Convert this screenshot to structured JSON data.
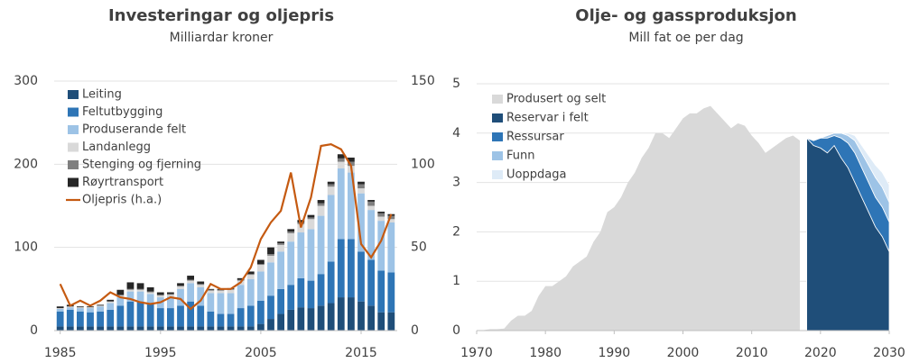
{
  "chart_data": [
    {
      "type": "bar",
      "title": "Investeringar og oljepris",
      "subtitle": "Milliardar kroner",
      "x": [
        1985,
        1986,
        1987,
        1988,
        1989,
        1990,
        1991,
        1992,
        1993,
        1994,
        1995,
        1996,
        1997,
        1998,
        1999,
        2000,
        2001,
        2002,
        2003,
        2004,
        2005,
        2006,
        2007,
        2008,
        2009,
        2010,
        2011,
        2012,
        2013,
        2014,
        2015,
        2016,
        2017,
        2018
      ],
      "xlim": [
        1984.4,
        2018.6
      ],
      "xticks": [
        1985,
        1995,
        2005,
        2015
      ],
      "ylim": [
        0,
        300
      ],
      "yticks": [
        0,
        100,
        200,
        300
      ],
      "y2lim": [
        0,
        150
      ],
      "y2ticks": [
        0,
        50,
        100,
        150
      ],
      "grid": true,
      "legend": "upper left",
      "series": [
        {
          "name": "Leiting",
          "color": "#1f4e79",
          "values": [
            5,
            5,
            5,
            5,
            5,
            5,
            5,
            5,
            5,
            5,
            5,
            5,
            5,
            5,
            5,
            5,
            5,
            5,
            5,
            5,
            8,
            14,
            20,
            25,
            28,
            27,
            30,
            33,
            40,
            40,
            35,
            30,
            22,
            22
          ]
        },
        {
          "name": "Feltutbygging",
          "color": "#2e75b6",
          "values": [
            18,
            20,
            18,
            17,
            18,
            20,
            25,
            30,
            30,
            27,
            22,
            22,
            25,
            30,
            25,
            18,
            15,
            15,
            22,
            25,
            28,
            28,
            30,
            30,
            35,
            33,
            38,
            50,
            70,
            70,
            60,
            55,
            50,
            48
          ]
        },
        {
          "name": "Produserande felt",
          "color": "#9dc3e6",
          "values": [
            3,
            3,
            4,
            5,
            6,
            8,
            10,
            12,
            12,
            12,
            13,
            14,
            20,
            22,
            22,
            22,
            25,
            25,
            28,
            32,
            35,
            40,
            45,
            52,
            55,
            62,
            70,
            80,
            85,
            80,
            70,
            60,
            60,
            60
          ]
        },
        {
          "name": "Landanlegg",
          "color": "#d9d9d9",
          "values": [
            1,
            1,
            1,
            1,
            1,
            2,
            2,
            2,
            2,
            2,
            2,
            2,
            3,
            3,
            3,
            3,
            3,
            4,
            5,
            5,
            8,
            8,
            8,
            10,
            10,
            12,
            12,
            10,
            8,
            8,
            6,
            5,
            5,
            4
          ]
        },
        {
          "name": "Stenging og fjerning",
          "color": "#7f7f7f",
          "values": [
            0,
            0,
            0,
            0,
            0,
            0,
            1,
            1,
            1,
            1,
            1,
            1,
            1,
            1,
            1,
            1,
            1,
            1,
            1,
            1,
            1,
            2,
            2,
            2,
            2,
            2,
            3,
            3,
            4,
            5,
            5,
            5,
            4,
            4
          ]
        },
        {
          "name": "Røyrtransport",
          "color": "#262626",
          "values": [
            2,
            2,
            1,
            1,
            1,
            2,
            6,
            8,
            7,
            5,
            3,
            2,
            3,
            5,
            3,
            1,
            1,
            1,
            2,
            3,
            5,
            8,
            2,
            3,
            3,
            3,
            4,
            3,
            5,
            5,
            3,
            2,
            2,
            2
          ]
        },
        {
          "name": "Oljepris (h.a.)",
          "color": "#c55a11",
          "axis": "y2",
          "values": [
            28,
            15,
            18,
            15,
            18,
            23,
            20,
            19,
            17,
            16,
            17,
            20,
            19,
            13,
            18,
            28,
            25,
            25,
            29,
            38,
            55,
            65,
            72,
            95,
            62,
            80,
            111,
            112,
            109,
            99,
            52,
            44,
            54,
            70
          ]
        }
      ]
    },
    {
      "type": "area",
      "title": "Olje- og gassproduksjon",
      "subtitle": "Mill fat oe per dag",
      "x": [
        1970,
        1971,
        1972,
        1973,
        1974,
        1975,
        1976,
        1977,
        1978,
        1979,
        1980,
        1981,
        1982,
        1983,
        1984,
        1985,
        1986,
        1987,
        1988,
        1989,
        1990,
        1991,
        1992,
        1993,
        1994,
        1995,
        1996,
        1997,
        1998,
        1999,
        2000,
        2001,
        2002,
        2003,
        2004,
        2005,
        2006,
        2007,
        2008,
        2009,
        2010,
        2011,
        2012,
        2013,
        2014,
        2015,
        2016,
        2017,
        2018,
        2019,
        2020,
        2021,
        2022,
        2023,
        2024,
        2025,
        2026,
        2027,
        2028,
        2029,
        2030
      ],
      "xlim": [
        1970,
        2030
      ],
      "xticks": [
        1970,
        1980,
        1990,
        2000,
        2010,
        2020,
        2030
      ],
      "ylim": [
        0,
        5
      ],
      "yticks": [
        0,
        1,
        2,
        3,
        4,
        5
      ],
      "grid": true,
      "legend": "upper left",
      "series": [
        {
          "name": "Produsert og selt",
          "color": "#d9d9d9",
          "values": [
            null,
            0.01,
            0.03,
            0.03,
            0.04,
            0.2,
            0.3,
            0.3,
            0.4,
            0.7,
            0.9,
            0.9,
            1.0,
            1.1,
            1.3,
            1.4,
            1.5,
            1.8,
            2.0,
            2.4,
            2.5,
            2.7,
            3.0,
            3.2,
            3.5,
            3.7,
            4.0,
            4.0,
            3.9,
            4.1,
            4.3,
            4.4,
            4.4,
            4.5,
            4.55,
            4.4,
            4.25,
            4.1,
            4.2,
            4.15,
            3.95,
            3.8,
            3.6,
            3.7,
            3.8,
            3.9,
            3.95,
            3.85,
            null,
            null,
            null,
            null,
            null,
            null,
            null,
            null,
            null,
            null,
            null,
            null,
            null
          ]
        },
        {
          "name": "Reservar i felt",
          "color": "#1f4e79",
          "values": [
            null,
            null,
            null,
            null,
            null,
            null,
            null,
            null,
            null,
            null,
            null,
            null,
            null,
            null,
            null,
            null,
            null,
            null,
            null,
            null,
            null,
            null,
            null,
            null,
            null,
            null,
            null,
            null,
            null,
            null,
            null,
            null,
            null,
            null,
            null,
            null,
            null,
            null,
            null,
            null,
            null,
            null,
            null,
            null,
            null,
            null,
            null,
            null,
            3.9,
            3.75,
            3.7,
            3.6,
            3.75,
            3.5,
            3.3,
            3.0,
            2.7,
            2.4,
            2.1,
            1.9,
            1.6
          ]
        },
        {
          "name": "Ressursar",
          "color": "#2e75b6",
          "values": [
            null,
            null,
            null,
            null,
            null,
            null,
            null,
            null,
            null,
            null,
            null,
            null,
            null,
            null,
            null,
            null,
            null,
            null,
            null,
            null,
            null,
            null,
            null,
            null,
            null,
            null,
            null,
            null,
            null,
            null,
            null,
            null,
            null,
            null,
            null,
            null,
            null,
            null,
            null,
            null,
            null,
            null,
            null,
            null,
            null,
            null,
            null,
            null,
            0,
            0.1,
            0.2,
            0.3,
            0.2,
            0.4,
            0.5,
            0.6,
            0.6,
            0.6,
            0.6,
            0.6,
            0.6
          ]
        },
        {
          "name": "Funn",
          "color": "#9dc3e6",
          "values": [
            null,
            null,
            null,
            null,
            null,
            null,
            null,
            null,
            null,
            null,
            null,
            null,
            null,
            null,
            null,
            null,
            null,
            null,
            null,
            null,
            null,
            null,
            null,
            null,
            null,
            null,
            null,
            null,
            null,
            null,
            null,
            null,
            null,
            null,
            null,
            null,
            null,
            null,
            null,
            null,
            null,
            null,
            null,
            null,
            null,
            null,
            null,
            null,
            0,
            0,
            0,
            0.05,
            0.05,
            0.1,
            0.15,
            0.25,
            0.3,
            0.35,
            0.4,
            0.4,
            0.4
          ]
        },
        {
          "name": "Uoppdaga",
          "color": "#deebf7",
          "values": [
            null,
            null,
            null,
            null,
            null,
            null,
            null,
            null,
            null,
            null,
            null,
            null,
            null,
            null,
            null,
            null,
            null,
            null,
            null,
            null,
            null,
            null,
            null,
            null,
            null,
            null,
            null,
            null,
            null,
            null,
            null,
            null,
            null,
            null,
            null,
            null,
            null,
            null,
            null,
            null,
            null,
            null,
            null,
            null,
            null,
            null,
            null,
            null,
            0,
            0,
            0,
            0,
            0,
            0,
            0.05,
            0.1,
            0.15,
            0.2,
            0.25,
            0.3,
            0.35
          ]
        }
      ]
    }
  ]
}
